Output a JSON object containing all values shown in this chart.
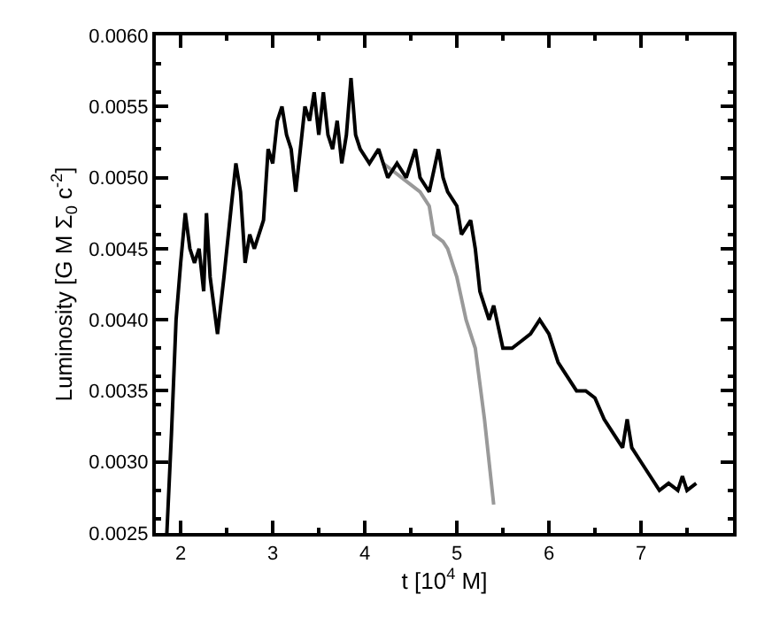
{
  "chart_data": {
    "type": "line",
    "xlabel": "t [10$^{4}$ M]",
    "ylabel": "Luminosity [G M Σ$_{0}$ c$^{-2}$]",
    "xlim": [
      1.73,
      8.0
    ],
    "xticks": [
      2,
      3,
      4,
      5,
      6,
      7
    ],
    "ylim": [
      0.0025,
      0.006
    ],
    "yticks": [
      {
        "value": 0.0025,
        "label": "0.0025"
      },
      {
        "value": 0.003,
        "label": "0.0030"
      },
      {
        "value": 0.0035,
        "label": "0.0035"
      },
      {
        "value": 0.004,
        "label": "0.0040"
      },
      {
        "value": 0.0045,
        "label": "0.0045"
      },
      {
        "value": 0.005,
        "label": "0.0050"
      },
      {
        "value": 0.0055,
        "label": "0.0055"
      },
      {
        "value": 0.006,
        "label": "0.0060"
      }
    ],
    "marker": "none",
    "line_style": "solid",
    "series": [
      {
        "color": "#999999",
        "x": [
          4.2,
          4.3,
          4.4,
          4.5,
          4.6,
          4.7,
          4.75,
          4.85,
          4.9,
          5.0,
          5.1,
          5.2,
          5.3,
          5.4
        ],
        "values": [
          0.0051,
          0.00505,
          0.005,
          0.00495,
          0.0049,
          0.0048,
          0.0046,
          0.00455,
          0.0045,
          0.0043,
          0.004,
          0.0038,
          0.0033,
          0.0027
        ]
      },
      {
        "color": "#000000",
        "x": [
          1.85,
          1.9,
          1.95,
          2.0,
          2.05,
          2.1,
          2.15,
          2.2,
          2.25,
          2.28,
          2.32,
          2.4,
          2.47,
          2.55,
          2.6,
          2.65,
          2.7,
          2.75,
          2.8,
          2.9,
          2.95,
          3.0,
          3.05,
          3.1,
          3.15,
          3.2,
          3.25,
          3.3,
          3.35,
          3.4,
          3.45,
          3.5,
          3.55,
          3.6,
          3.65,
          3.7,
          3.75,
          3.8,
          3.85,
          3.9,
          3.95,
          4.05,
          4.15,
          4.25,
          4.35,
          4.45,
          4.55,
          4.6,
          4.7,
          4.8,
          4.85,
          4.9,
          5.0,
          5.05,
          5.15,
          5.2,
          5.25,
          5.35,
          5.4,
          5.5,
          5.6,
          5.7,
          5.8,
          5.9,
          6.0,
          6.1,
          6.2,
          6.3,
          6.4,
          6.5,
          6.6,
          6.7,
          6.8,
          6.85,
          6.9,
          7.0,
          7.1,
          7.2,
          7.3,
          7.4,
          7.45,
          7.5,
          7.6
        ],
        "values": [
          0.0025,
          0.0032,
          0.004,
          0.0044,
          0.00475,
          0.0045,
          0.0044,
          0.0045,
          0.0042,
          0.00475,
          0.0043,
          0.0039,
          0.0043,
          0.0048,
          0.0051,
          0.0049,
          0.0044,
          0.0046,
          0.0045,
          0.0047,
          0.0052,
          0.0051,
          0.0054,
          0.0055,
          0.0053,
          0.0052,
          0.0049,
          0.0052,
          0.0055,
          0.0054,
          0.0056,
          0.0053,
          0.0056,
          0.0053,
          0.0052,
          0.0054,
          0.0051,
          0.0053,
          0.0057,
          0.0053,
          0.0052,
          0.0051,
          0.0052,
          0.005,
          0.0051,
          0.005,
          0.0052,
          0.005,
          0.0049,
          0.0052,
          0.005,
          0.0049,
          0.0048,
          0.0046,
          0.0047,
          0.0045,
          0.0042,
          0.004,
          0.0041,
          0.0038,
          0.0038,
          0.00385,
          0.0039,
          0.004,
          0.0039,
          0.0037,
          0.0036,
          0.0035,
          0.0035,
          0.00345,
          0.0033,
          0.0032,
          0.0031,
          0.0033,
          0.0031,
          0.003,
          0.0029,
          0.0028,
          0.00285,
          0.0028,
          0.0029,
          0.0028,
          0.00285
        ]
      }
    ]
  }
}
